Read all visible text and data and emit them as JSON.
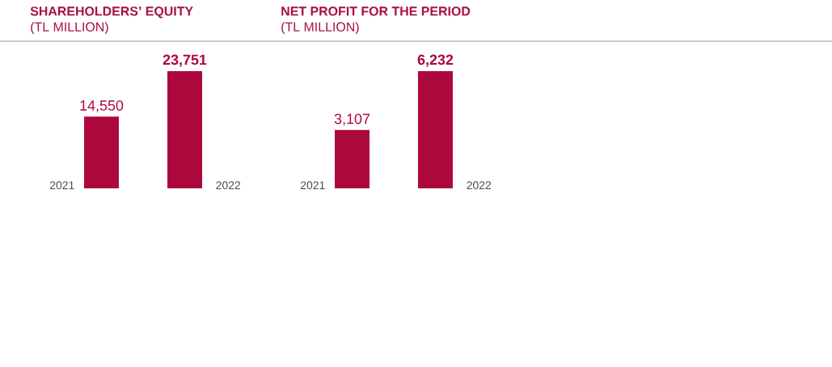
{
  "chart_data": [
    {
      "type": "bar",
      "title": "SHAREHOLDERS’ EQUITY",
      "subtitle": "(TL MILLION)",
      "categories": [
        "2021",
        "2022"
      ],
      "values": [
        14550,
        23751
      ],
      "value_labels": [
        "14,550",
        "23,751"
      ],
      "color": "#ad083c"
    },
    {
      "type": "bar",
      "title": "NET PROFIT FOR THE PERIOD",
      "subtitle": "(TL MILLION)",
      "categories": [
        "2021",
        "2022"
      ],
      "values": [
        3107,
        6232
      ],
      "value_labels": [
        "3,107",
        "6,232"
      ],
      "color": "#ad083c"
    }
  ]
}
